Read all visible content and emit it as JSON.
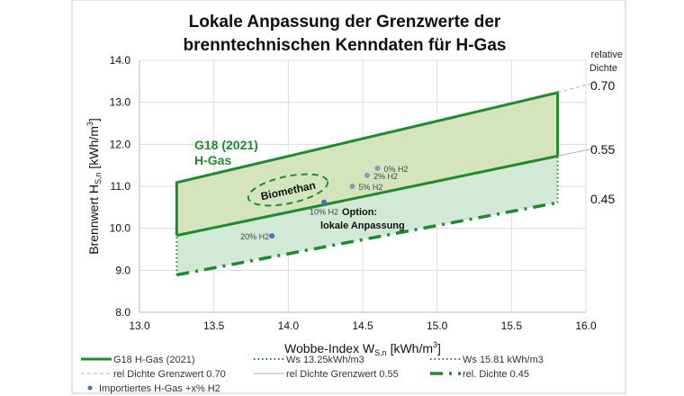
{
  "chart_data": {
    "type": "line",
    "title": [
      "Lokale Anpassung der Grenzwerte der",
      "brenntechnischen Kenndaten für H-Gas"
    ],
    "xlabel": {
      "main": "Wobbe-Index W",
      "sub": "S,n",
      "unit": " [kWh/m",
      "sup": "3",
      "end": "]"
    },
    "ylabel": {
      "main": "Brennwert H",
      "sub": "S,n",
      "unit": " [kWh/m",
      "sup": "3",
      "end": "]"
    },
    "xlim": [
      13.0,
      16.0
    ],
    "ylim": [
      8.0,
      14.0
    ],
    "xticks": [
      "13.0",
      "13.5",
      "14.0",
      "14.5",
      "15.0",
      "15.5",
      "16.0"
    ],
    "yticks": [
      "8.0",
      "9.0",
      "10.0",
      "11.0",
      "12.0",
      "13.0",
      "14.0"
    ],
    "grid": true,
    "series": [
      {
        "name": "G18 H-Gas (2021)",
        "style": "solid-thick",
        "color": "#1e8c2e",
        "points": [
          [
            13.25,
            9.83
          ],
          [
            13.25,
            11.09
          ],
          [
            15.81,
            13.23
          ],
          [
            15.81,
            11.72
          ],
          [
            13.25,
            9.83
          ]
        ]
      },
      {
        "name": "Ws 13.25kWh/m3",
        "style": "dotted",
        "color": "#1e8c2e",
        "points": [
          [
            13.25,
            8.89
          ],
          [
            13.25,
            9.83
          ]
        ]
      },
      {
        "name": "Ws 15.81 kWh/m3",
        "style": "dotted",
        "color": "#1e8c2e",
        "points": [
          [
            15.81,
            10.61
          ],
          [
            15.81,
            11.72
          ]
        ]
      },
      {
        "name": "rel Dichte Grenzwert 0.70",
        "style": "dashed-grey",
        "color": "#b0b0b0",
        "points": [
          [
            15.81,
            13.23
          ],
          [
            16.05,
            13.46
          ]
        ]
      },
      {
        "name": "rel Dichte Grenzwert 0.55",
        "style": "solid-grey",
        "color": "#b0b0b0",
        "points": [
          [
            15.81,
            11.72
          ],
          [
            16.05,
            11.9
          ]
        ]
      },
      {
        "name": "rel. Dichte 0.45",
        "style": "dash-dot",
        "color": "#1e8c2e",
        "points": [
          [
            13.25,
            8.89
          ],
          [
            15.81,
            10.61
          ]
        ]
      },
      {
        "name": "Importiertes H-Gas +x% H2",
        "style": "markers",
        "color": "#4472c4",
        "points": [
          {
            "x": 14.6,
            "y": 11.43,
            "label": "0% H2"
          },
          {
            "x": 14.53,
            "y": 11.26,
            "label": "2% H2"
          },
          {
            "x": 14.43,
            "y": 11.0,
            "label": "5% H2"
          },
          {
            "x": 14.24,
            "y": 10.62,
            "label": "10% H2"
          },
          {
            "x": 13.89,
            "y": 9.82,
            "label": "20% H2"
          }
        ]
      }
    ],
    "annotations": {
      "g18_line1": "G18 (2021)",
      "g18_line2": "H-Gas",
      "biomethan": "Biomethan",
      "option_line1": "Option:",
      "option_line2": "lokale Anpassung",
      "rel_header1": "relative",
      "rel_header2": "Dichte",
      "rel_070": "0.70",
      "rel_055": "0.55",
      "rel_045": "0.45"
    },
    "legend": {
      "placement": "bottom",
      "items": [
        "G18 H-Gas (2021)",
        "Ws 13.25kWh/m3",
        "Ws 15.81 kWh/m3",
        "rel Dichte Grenzwert 0.70",
        "rel Dichte Grenzwert 0.55",
        "rel. Dichte 0.45",
        "Importiertes H-Gas +x% H2"
      ]
    },
    "colors": {
      "green": "#1e8c2e",
      "upper_fill": "#d5e4bd",
      "lower_fill": "#d3e9d8",
      "marker_light": "#7fa0b8",
      "marker": "#4472c4"
    }
  }
}
